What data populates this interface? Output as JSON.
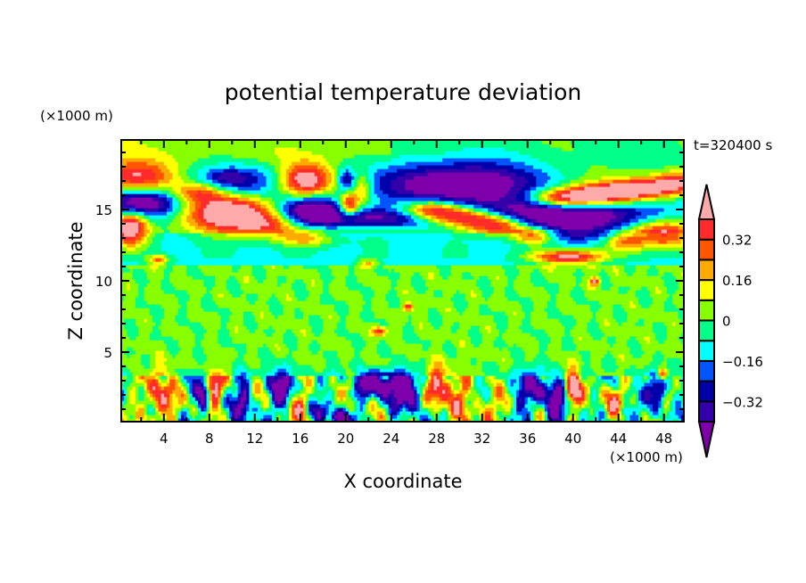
{
  "chart_data": {
    "type": "heatmap",
    "subtype": "filled-contour",
    "title": "potential temperature deviation",
    "xlabel": "X coordinate",
    "ylabel": "Z coordinate",
    "x_unit_label": "(×1000 m)",
    "y_unit_label": "(×1000 m)",
    "time_label": "t=320400 s",
    "xlim": [
      0.25,
      49.75
    ],
    "ylim": [
      0.125,
      19.875
    ],
    "x_ticks": [
      4,
      8,
      12,
      16,
      20,
      24,
      28,
      32,
      36,
      40,
      44,
      48
    ],
    "y_ticks": [
      5,
      10,
      15
    ],
    "colorbar": {
      "levels": [
        -0.4,
        -0.32,
        -0.24,
        -0.16,
        -0.08,
        0,
        0.08,
        0.16,
        0.24,
        0.32,
        0.4
      ],
      "tick_labels": [
        {
          "value": 0.32,
          "label": "0.32"
        },
        {
          "value": 0.16,
          "label": "0.16"
        },
        {
          "value": 0,
          "label": "0"
        },
        {
          "value": -0.16,
          "label": "−0.16"
        },
        {
          "value": -0.32,
          "label": "−0.32"
        }
      ],
      "colors": [
        "#7f00aa",
        "#3300aa",
        "#0000aa",
        "#0055ff",
        "#00ffff",
        "#00ff88",
        "#88ff00",
        "#ffff00",
        "#ffaa00",
        "#ff5500",
        "#ff2a2a",
        "#ffaaaa"
      ],
      "extend": "both"
    },
    "features": [
      {
        "x": 1.0,
        "z": 13.7,
        "sx": 1.1,
        "sz": 0.9,
        "value": 0.6
      },
      {
        "x": 1.5,
        "z": 17.3,
        "sx": 2.5,
        "sz": 0.8,
        "value": 0.42
      },
      {
        "x": 2.0,
        "z": 15.5,
        "sx": 2.6,
        "sz": 0.7,
        "value": -0.55
      },
      {
        "x": 10.5,
        "z": 17.0,
        "sx": 3.2,
        "sz": 0.8,
        "value": -0.3
      },
      {
        "x": 9.5,
        "z": 17.3,
        "sx": 1.0,
        "sz": 0.3,
        "value": -0.12
      },
      {
        "x": 9.8,
        "z": 14.8,
        "sx": 2.6,
        "sz": 0.9,
        "value": 0.6
      },
      {
        "x": 13.5,
        "z": 14.0,
        "sx": 2.0,
        "sz": 0.6,
        "value": 0.3
      },
      {
        "x": 16.5,
        "z": 13.0,
        "sx": 1.8,
        "sz": 0.4,
        "value": 0.28
      },
      {
        "x": 7.0,
        "z": 16.2,
        "sx": 1.5,
        "sz": 0.5,
        "value": 0.35
      },
      {
        "x": 16.5,
        "z": 17.1,
        "sx": 1.6,
        "sz": 0.8,
        "value": 0.55
      },
      {
        "x": 17.0,
        "z": 15.0,
        "sx": 2.0,
        "sz": 0.7,
        "value": -0.55
      },
      {
        "x": 22.0,
        "z": 14.4,
        "sx": 4.0,
        "sz": 0.5,
        "value": -0.4
      },
      {
        "x": 20.0,
        "z": 17.1,
        "sx": 0.5,
        "sz": 0.5,
        "value": -0.3
      },
      {
        "x": 20.3,
        "z": 15.3,
        "sx": 0.6,
        "sz": 0.6,
        "value": 0.5
      },
      {
        "x": 21.5,
        "z": 16.5,
        "sx": 0.6,
        "sz": 0.8,
        "value": 0.25
      },
      {
        "x": 30.0,
        "z": 16.8,
        "sx": 5.0,
        "sz": 1.1,
        "value": -0.6
      },
      {
        "x": 39.0,
        "z": 14.8,
        "sx": 6.5,
        "sz": 0.7,
        "value": -0.5
      },
      {
        "x": 40.0,
        "z": 13.7,
        "sx": 5.0,
        "sz": 0.6,
        "value": -0.25
      },
      {
        "x": 27.5,
        "z": 15.0,
        "sx": 1.8,
        "sz": 0.5,
        "value": 0.55
      },
      {
        "x": 30.5,
        "z": 14.5,
        "sx": 2.0,
        "sz": 0.5,
        "value": 0.55
      },
      {
        "x": 33.5,
        "z": 13.9,
        "sx": 1.8,
        "sz": 0.5,
        "value": 0.5
      },
      {
        "x": 36.5,
        "z": 13.2,
        "sx": 1.3,
        "sz": 0.4,
        "value": 0.45
      },
      {
        "x": 39.0,
        "z": 15.8,
        "sx": 2.0,
        "sz": 0.5,
        "value": 0.55
      },
      {
        "x": 42.5,
        "z": 16.1,
        "sx": 2.0,
        "sz": 0.5,
        "value": 0.55
      },
      {
        "x": 46.0,
        "z": 16.5,
        "sx": 2.0,
        "sz": 0.5,
        "value": 0.5
      },
      {
        "x": 49.0,
        "z": 16.9,
        "sx": 1.3,
        "sz": 0.5,
        "value": 0.45
      },
      {
        "x": 39.6,
        "z": 11.7,
        "sx": 2.2,
        "sz": 0.35,
        "value": 0.55
      },
      {
        "x": 47.8,
        "z": 13.3,
        "sx": 2.0,
        "sz": 0.7,
        "value": 0.5
      },
      {
        "x": 44.5,
        "z": 12.8,
        "sx": 1.2,
        "sz": 0.5,
        "value": 0.3
      },
      {
        "x": 3.5,
        "z": 11.5,
        "sx": 0.7,
        "sz": 0.25,
        "value": 0.35
      },
      {
        "x": 22.0,
        "z": 11.3,
        "sx": 0.6,
        "sz": 0.2,
        "value": 0.3
      },
      {
        "x": 42.0,
        "z": 10.0,
        "sx": 0.3,
        "sz": 0.2,
        "value": 0.4
      },
      {
        "x": 25.5,
        "z": 8.2,
        "sx": 0.3,
        "sz": 0.2,
        "value": 0.4
      },
      {
        "x": 23.0,
        "z": 6.5,
        "sx": 0.4,
        "sz": 0.2,
        "value": 0.4
      },
      {
        "x": 3.5,
        "z": 1.8,
        "sx": 1.0,
        "sz": 1.3,
        "value": 0.4
      },
      {
        "x": 8.5,
        "z": 2.6,
        "sx": 0.5,
        "sz": 0.8,
        "value": 0.55
      },
      {
        "x": 7.5,
        "z": 2.0,
        "sx": 0.4,
        "sz": 0.8,
        "value": -0.4
      },
      {
        "x": 11.0,
        "z": 1.5,
        "sx": 0.5,
        "sz": 1.3,
        "value": -0.35
      },
      {
        "x": 14.5,
        "z": 2.3,
        "sx": 0.7,
        "sz": 1.0,
        "value": -0.5
      },
      {
        "x": 16.0,
        "z": 1.3,
        "sx": 0.9,
        "sz": 0.9,
        "value": 0.35
      },
      {
        "x": 17.5,
        "z": 0.9,
        "sx": 0.6,
        "sz": 0.5,
        "value": -0.3
      },
      {
        "x": 19.5,
        "z": 0.4,
        "sx": 0.8,
        "sz": 0.4,
        "value": -0.4
      },
      {
        "x": 20.5,
        "z": 2.8,
        "sx": 0.4,
        "sz": 0.5,
        "value": 0.5
      },
      {
        "x": 22.5,
        "z": 2.8,
        "sx": 1.8,
        "sz": 0.6,
        "value": -0.5
      },
      {
        "x": 25.5,
        "z": 2.3,
        "sx": 1.0,
        "sz": 0.8,
        "value": -0.5
      },
      {
        "x": 28.0,
        "z": 2.6,
        "sx": 0.7,
        "sz": 0.9,
        "value": 0.6
      },
      {
        "x": 30.0,
        "z": 2.0,
        "sx": 0.8,
        "sz": 1.1,
        "value": 0.3
      },
      {
        "x": 32.5,
        "z": 0.9,
        "sx": 1.0,
        "sz": 0.8,
        "value": 0.28
      },
      {
        "x": 36.5,
        "z": 2.2,
        "sx": 1.0,
        "sz": 1.0,
        "value": -0.35
      },
      {
        "x": 38.5,
        "z": 1.3,
        "sx": 0.5,
        "sz": 1.2,
        "value": -0.45
      },
      {
        "x": 40.0,
        "z": 2.4,
        "sx": 0.5,
        "sz": 1.0,
        "value": 0.55
      },
      {
        "x": 43.5,
        "z": 1.5,
        "sx": 0.7,
        "sz": 1.0,
        "value": 0.35
      },
      {
        "x": 47.5,
        "z": 2.5,
        "sx": 0.5,
        "sz": 0.7,
        "value": -0.5
      },
      {
        "x": 47.8,
        "z": 3.5,
        "sx": 0.3,
        "sz": 0.25,
        "value": 0.45
      },
      {
        "x": 44.5,
        "z": 0.6,
        "sx": 0.5,
        "sz": 0.5,
        "value": -0.3
      }
    ]
  }
}
